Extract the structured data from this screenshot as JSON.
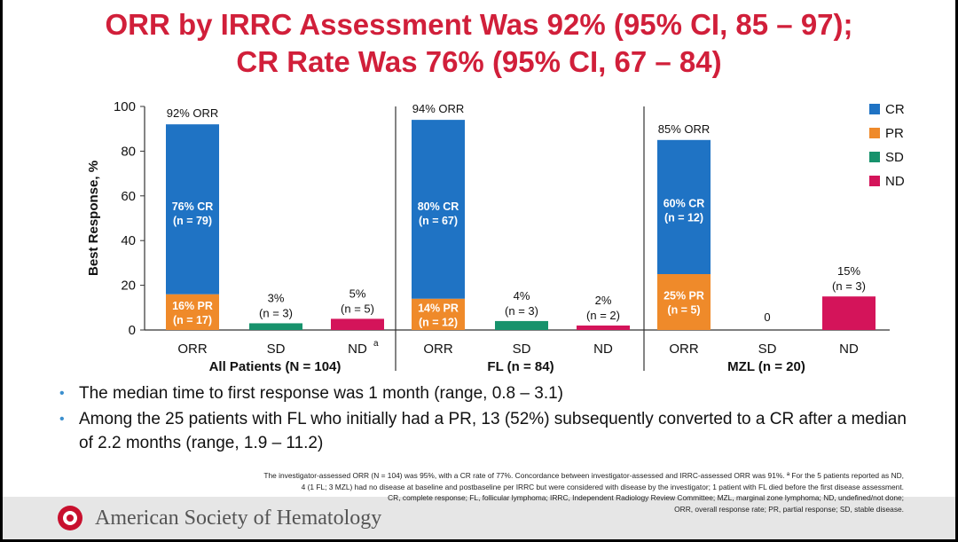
{
  "title_line1": "ORR by IRRC Assessment Was 92% (95% CI, 85 – 97);",
  "title_line2": "CR Rate Was 76% (95% CI, 67 – 84)",
  "chart_data": {
    "type": "bar",
    "stacked": true,
    "ylabel": "Best Response, %",
    "ylim": [
      0,
      100
    ],
    "yticks": [
      0,
      20,
      40,
      60,
      80,
      100
    ],
    "legend_position": "right",
    "legend": [
      {
        "key": "CR",
        "label": "CR",
        "color": "#1f73c4"
      },
      {
        "key": "PR",
        "label": "PR",
        "color": "#ef8a2a"
      },
      {
        "key": "SD",
        "label": "SD",
        "color": "#17926c"
      },
      {
        "key": "ND",
        "label": "ND",
        "color": "#d4145a"
      }
    ],
    "groups": [
      {
        "name": "All Patients (N = 104)",
        "bars": [
          {
            "category": "ORR",
            "top_label": "92% ORR",
            "segments": [
              {
                "key": "PR",
                "value": 16,
                "label1": "16% PR",
                "label2": "(n = 17)"
              },
              {
                "key": "CR",
                "value": 76,
                "label1": "76% CR",
                "label2": "(n = 79)"
              }
            ]
          },
          {
            "category": "SD",
            "top_label1": "3%",
            "top_label2": "(n = 3)",
            "segments": [
              {
                "key": "SD",
                "value": 3
              }
            ]
          },
          {
            "category": "ND",
            "category_sup": "a",
            "top_label1": "5%",
            "top_label2": "(n = 5)",
            "segments": [
              {
                "key": "ND",
                "value": 5
              }
            ]
          }
        ]
      },
      {
        "name": "FL (n = 84)",
        "bars": [
          {
            "category": "ORR",
            "top_label": "94% ORR",
            "segments": [
              {
                "key": "PR",
                "value": 14,
                "label1": "14% PR",
                "label2": "(n = 12)"
              },
              {
                "key": "CR",
                "value": 80,
                "label1": "80% CR",
                "label2": "(n = 67)"
              }
            ]
          },
          {
            "category": "SD",
            "top_label1": "4%",
            "top_label2": "(n = 3)",
            "segments": [
              {
                "key": "SD",
                "value": 4
              }
            ]
          },
          {
            "category": "ND",
            "top_label1": "2%",
            "top_label2": "(n = 2)",
            "segments": [
              {
                "key": "ND",
                "value": 2
              }
            ]
          }
        ]
      },
      {
        "name": "MZL (n = 20)",
        "bars": [
          {
            "category": "ORR",
            "top_label": "85% ORR",
            "segments": [
              {
                "key": "PR",
                "value": 25,
                "label1": "25% PR",
                "label2": "(n = 5)"
              },
              {
                "key": "CR",
                "value": 60,
                "label1": "60% CR",
                "label2": "(n = 12)"
              }
            ]
          },
          {
            "category": "SD",
            "top_label1": "0",
            "segments": [
              {
                "key": "SD",
                "value": 0
              }
            ]
          },
          {
            "category": "ND",
            "top_label1": "15%",
            "top_label2": "(n = 3)",
            "segments": [
              {
                "key": "ND",
                "value": 15
              }
            ]
          }
        ]
      }
    ]
  },
  "bullets": [
    "The median time to first response was 1 month (range, 0.8 – 3.1)",
    "Among the 25 patients with FL who initially had a PR, 13 (52%) subsequently converted to a CR after a median of 2.2 months (range, 1.9 – 11.2)"
  ],
  "bullet_marker": "•",
  "footnote_lines": [
    "The investigator-assessed ORR (N = 104) was 95%, with a CR rate of 77%. Concordance between investigator-assessed and IRRC-assessed ORR was 91%. ª For the 5 patients reported as ND,",
    "4 (1 FL; 3 MZL) had no disease at baseline and postbaseline per IRRC but were considered with disease by the investigator; 1 patient with FL died before the first disease assessment.",
    "CR, complete response; FL, follicular lymphoma; IRRC, Independent Radiology Review Committee; MZL, marginal zone lymphoma; ND, undefined/not done;",
    "ORR, overall response rate; PR, partial response; SD, stable disease."
  ],
  "society_name": "American Society of Hematology"
}
